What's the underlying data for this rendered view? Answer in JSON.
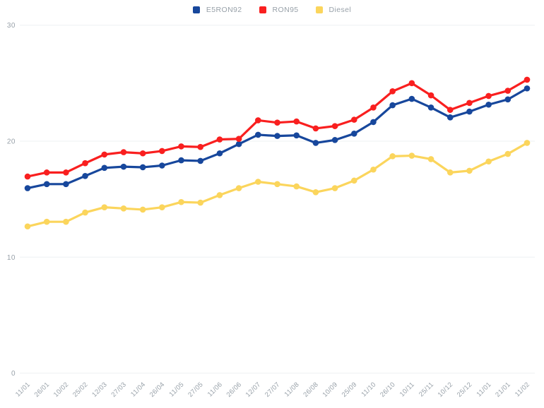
{
  "colors": {
    "background": "#ffffff",
    "grid_line": "#edf0f3",
    "axis_label": "#98a1a9",
    "series_e5ron92": "#17479c",
    "series_ron95": "#f91f1f",
    "series_diesel": "#fbd55c"
  },
  "legend": {
    "items": [
      "E5RON92",
      "RON95",
      "Diesel"
    ]
  },
  "chart_data": {
    "type": "line",
    "title": "",
    "xlabel": "",
    "ylabel": "",
    "grid": "horizontal",
    "legend_position": "top-center",
    "marker": "dot",
    "ylim": [
      0,
      30
    ],
    "yticks": [
      0,
      10,
      20,
      30
    ],
    "categories": [
      "11/01",
      "26/01",
      "10/02",
      "25/02",
      "12/03",
      "27/03",
      "11/04",
      "26/04",
      "11/05",
      "27/05",
      "11/06",
      "26/06",
      "12/07",
      "27/07",
      "11/08",
      "26/08",
      "10/09",
      "25/09",
      "11/10",
      "26/10",
      "10/11",
      "25/11",
      "10/12",
      "25/12",
      "11/01",
      "21/01",
      "11/02"
    ],
    "series": [
      {
        "name": "E5RON92",
        "color": "#17479c",
        "values": [
          15.95,
          16.3,
          16.3,
          17.0,
          17.7,
          17.8,
          17.75,
          17.9,
          18.35,
          18.3,
          18.95,
          19.75,
          20.55,
          20.45,
          20.5,
          19.85,
          20.1,
          20.65,
          21.65,
          23.1,
          23.65,
          22.9,
          22.05,
          22.55,
          23.15,
          23.6,
          24.55
        ]
      },
      {
        "name": "RON95",
        "color": "#f91f1f",
        "values": [
          16.95,
          17.3,
          17.3,
          18.1,
          18.85,
          19.05,
          18.95,
          19.15,
          19.55,
          19.5,
          20.15,
          20.2,
          21.8,
          21.6,
          21.7,
          21.1,
          21.3,
          21.85,
          22.9,
          24.3,
          25.0,
          23.95,
          22.7,
          23.3,
          23.9,
          24.35,
          25.3
        ]
      },
      {
        "name": "Diesel",
        "color": "#fbd55c",
        "values": [
          12.65,
          13.05,
          13.05,
          13.85,
          14.3,
          14.2,
          14.1,
          14.3,
          14.75,
          14.7,
          15.35,
          15.95,
          16.5,
          16.3,
          16.1,
          15.6,
          15.95,
          16.6,
          17.55,
          18.7,
          18.75,
          18.45,
          17.3,
          17.45,
          18.25,
          18.9,
          19.85
        ]
      }
    ]
  }
}
